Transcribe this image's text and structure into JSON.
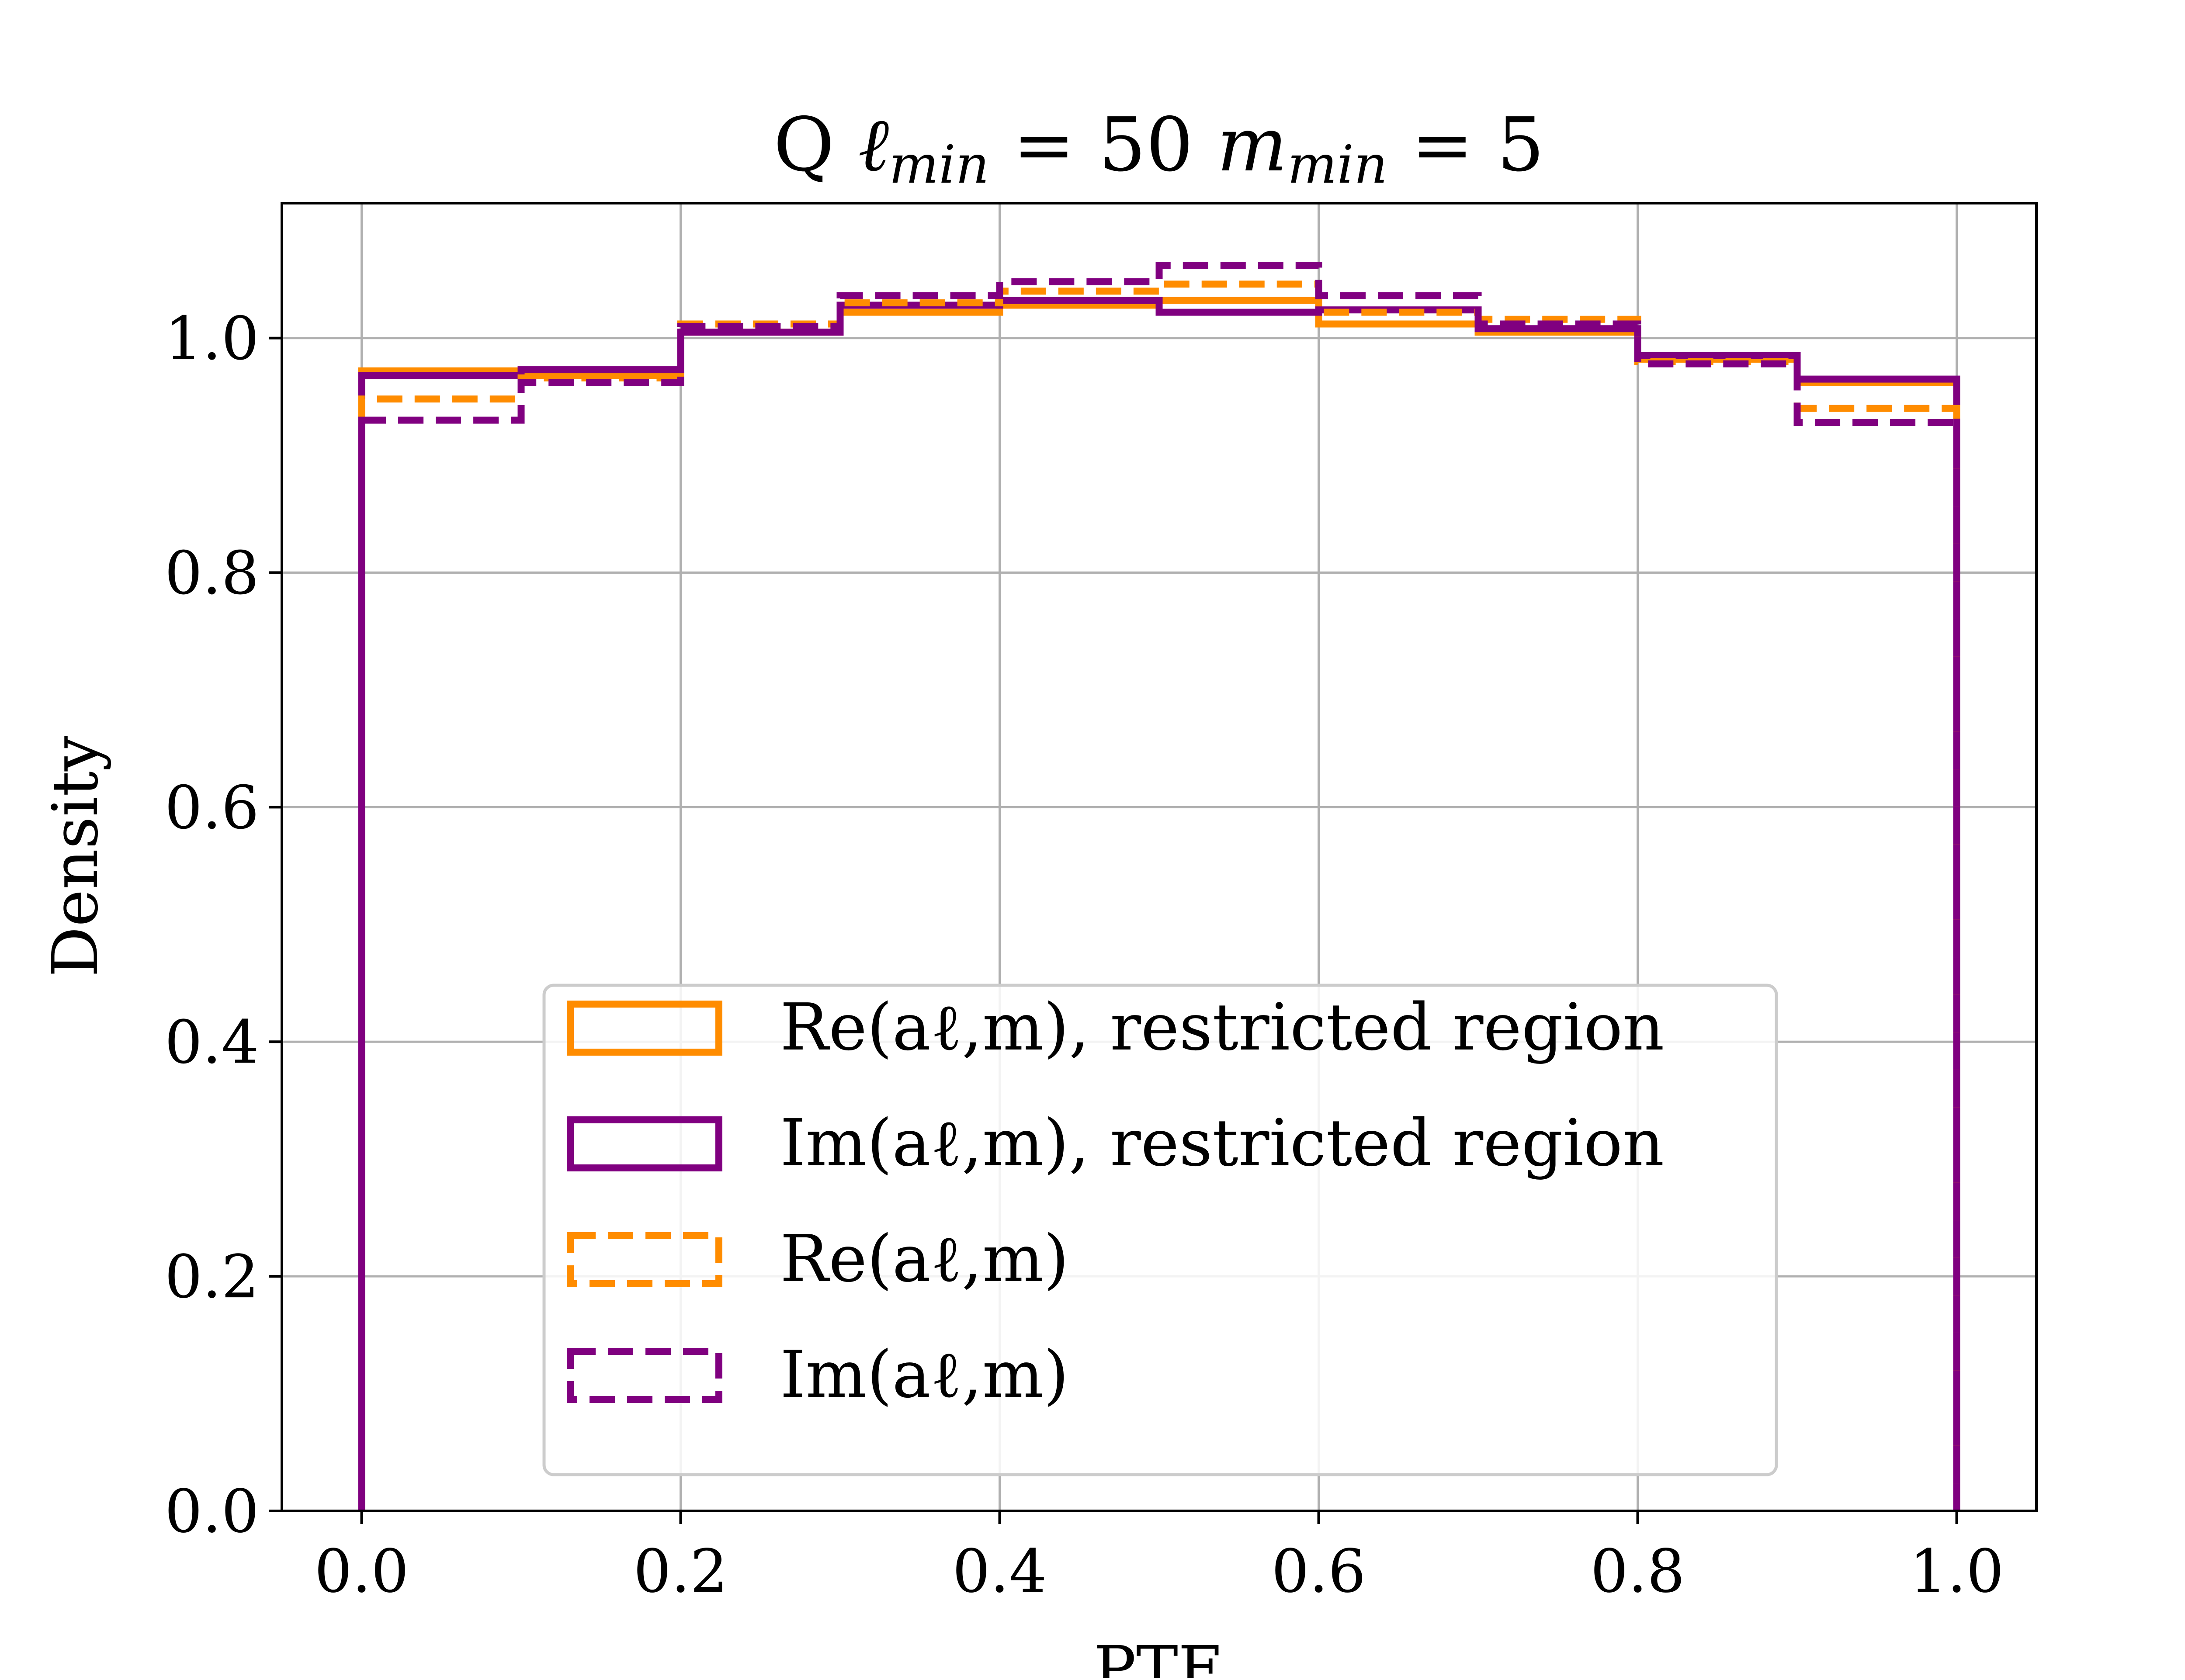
{
  "chart_data": {
    "type": "histogram-step",
    "title": "Q ℓmin = 50  mmin = 5",
    "xlabel": "PTE",
    "ylabel": "Density",
    "xlim": [
      -0.05,
      1.05
    ],
    "ylim": [
      0.0,
      1.115
    ],
    "grid": true,
    "legend_position": "lower-center",
    "x_ticks": [
      "0.0",
      "0.2",
      "0.4",
      "0.6",
      "0.8",
      "1.0"
    ],
    "y_ticks": [
      "0.0",
      "0.2",
      "0.4",
      "0.6",
      "0.8",
      "1.0"
    ],
    "bin_edges": [
      0.0,
      0.1,
      0.2,
      0.3,
      0.4,
      0.5,
      0.6,
      0.7,
      0.8,
      0.9,
      1.0
    ],
    "series": [
      {
        "name": "Re(aℓ,m), restricted region",
        "color": "#ff8c00",
        "linestyle": "solid",
        "values": [
          0.972,
          0.968,
          1.005,
          1.022,
          1.028,
          1.032,
          1.012,
          1.005,
          0.982,
          0.962
        ]
      },
      {
        "name": "Im(aℓ,m), restricted region",
        "color": "#800080",
        "linestyle": "solid",
        "values": [
          0.968,
          0.973,
          1.005,
          1.028,
          1.032,
          1.022,
          1.024,
          1.008,
          0.985,
          0.965
        ]
      },
      {
        "name": "Re(aℓ,m)",
        "color": "#ff8c00",
        "linestyle": "dashed",
        "values": [
          0.948,
          0.966,
          1.012,
          1.03,
          1.04,
          1.046,
          1.022,
          1.016,
          0.98,
          0.94
        ]
      },
      {
        "name": "Im(aℓ,m)",
        "color": "#800080",
        "linestyle": "dashed",
        "values": [
          0.93,
          0.962,
          1.01,
          1.036,
          1.048,
          1.062,
          1.036,
          1.012,
          0.978,
          0.928
        ]
      }
    ]
  }
}
